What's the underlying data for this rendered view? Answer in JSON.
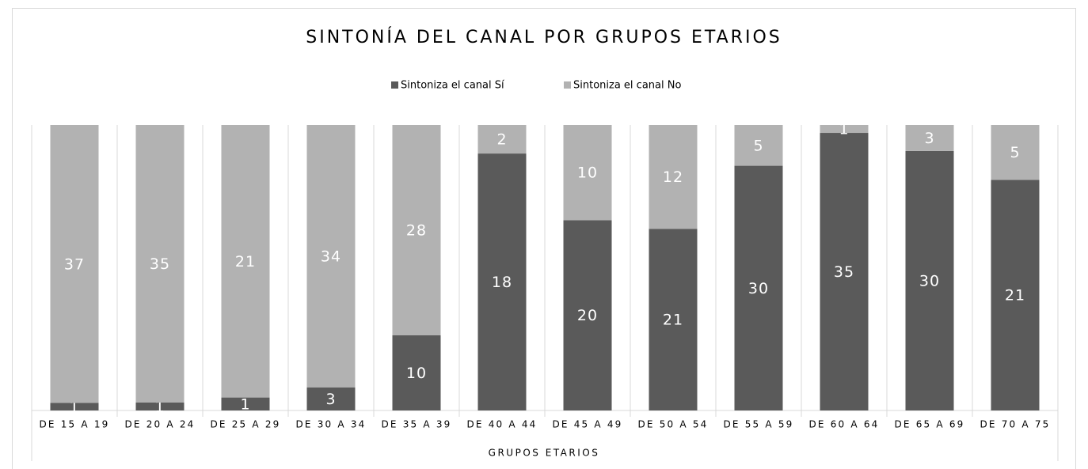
{
  "chart_data": {
    "type": "bar",
    "stacked": "percent",
    "title": "SINTONÍA DEL CANAL POR GRUPOS ETARIOS",
    "x_label": "GRUPOS ETARIOS",
    "legend": "top",
    "categories": [
      "DE 15 A 19",
      "DE 20 A 24",
      "DE 25 A 29",
      "DE 30 A 34",
      "DE 35 A 39",
      "DE 40 A 44",
      "DE 45 A 49",
      "DE 50 A 54",
      "DE 55 A 59",
      "DE 60 A 64",
      "DE 65 A 69",
      "DE 70 A 75"
    ],
    "series": [
      {
        "name": "Sintoniza el canal  Sí",
        "color": "#5a5a5a",
        "values": [
          1,
          1,
          1,
          3,
          10,
          18,
          20,
          21,
          30,
          35,
          30,
          21
        ]
      },
      {
        "name": "Sintoniza el canal  No",
        "color": "#b2b2b2",
        "values": [
          37,
          35,
          21,
          34,
          28,
          2,
          10,
          12,
          5,
          1,
          3,
          5
        ]
      }
    ]
  }
}
